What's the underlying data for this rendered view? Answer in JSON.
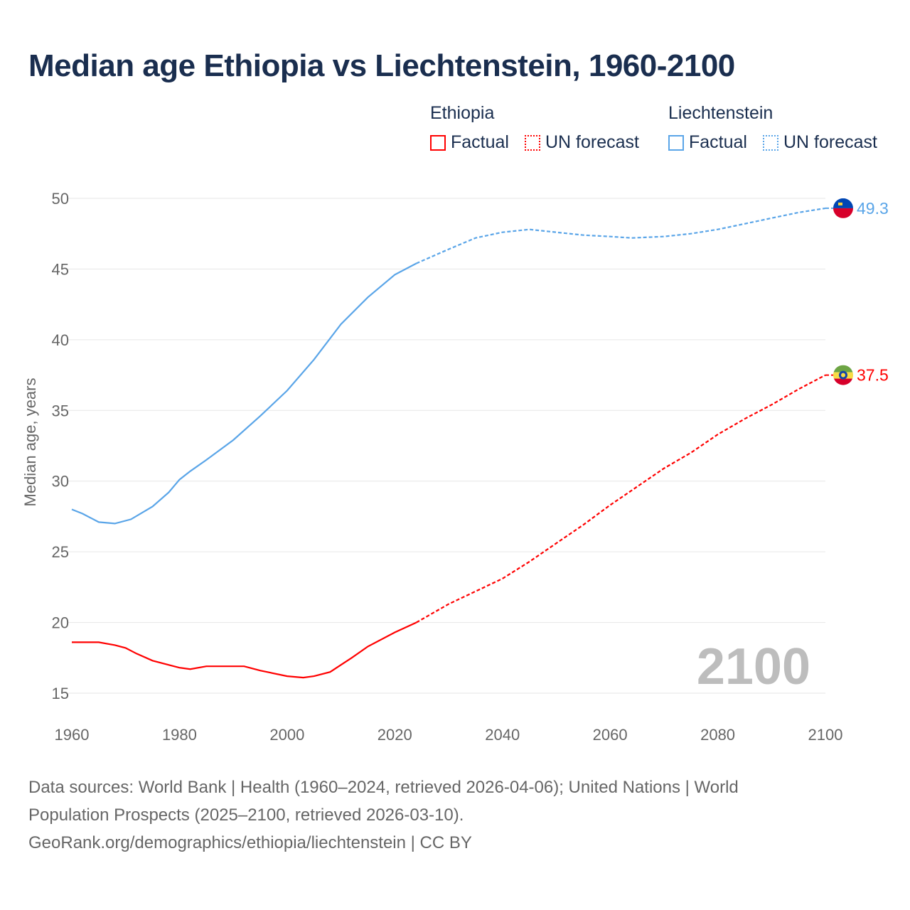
{
  "title": "Median age Ethiopia vs Liechtenstein, 1960-2100",
  "legend": [
    {
      "group": "Ethiopia",
      "factual": "Factual",
      "forecast": "UN forecast",
      "color": "#ff0000"
    },
    {
      "group": "Liechtenstein",
      "factual": "Factual",
      "forecast": "UN forecast",
      "color": "#5aa5e8"
    }
  ],
  "year_label": "2100",
  "footer": {
    "line1": "Data sources: World Bank | Health (1960–2024, retrieved 2026-04-06); United Nations | World",
    "line2": "Population Prospects (2025–2100, retrieved 2026-03-10).",
    "line3": "GeoRank.org/demographics/ethiopia/liechtenstein | CC BY"
  },
  "chart_data": {
    "type": "line",
    "title": "Median age Ethiopia vs Liechtenstein, 1960-2100",
    "xlabel": "",
    "ylabel": "Median age, years",
    "xlim": [
      1960,
      2100
    ],
    "ylim": [
      15,
      50
    ],
    "xticks": [
      1960,
      1980,
      2000,
      2020,
      2040,
      2060,
      2080,
      2100
    ],
    "yticks": [
      15,
      20,
      25,
      30,
      35,
      40,
      45,
      50
    ],
    "forecast_start": 2024,
    "series": [
      {
        "name": "Liechtenstein",
        "color": "#5aa5e8",
        "end_label": "49.3",
        "x": [
          1960,
          1962,
          1965,
          1968,
          1971,
          1975,
          1978,
          1980,
          1982,
          1985,
          1990,
          1995,
          2000,
          2005,
          2010,
          2015,
          2020,
          2024,
          2030,
          2035,
          2040,
          2045,
          2050,
          2055,
          2060,
          2064,
          2070,
          2075,
          2080,
          2085,
          2090,
          2095,
          2100
        ],
        "y": [
          28.0,
          27.7,
          27.1,
          27.0,
          27.3,
          28.2,
          29.2,
          30.1,
          30.7,
          31.5,
          32.9,
          34.6,
          36.4,
          38.6,
          41.1,
          43.0,
          44.6,
          45.4,
          46.4,
          47.2,
          47.6,
          47.8,
          47.6,
          47.4,
          47.3,
          47.2,
          47.3,
          47.5,
          47.8,
          48.2,
          48.6,
          49.0,
          49.3
        ]
      },
      {
        "name": "Ethiopia",
        "color": "#ff0000",
        "end_label": "37.5",
        "x": [
          1960,
          1965,
          1968,
          1970,
          1972,
          1975,
          1980,
          1982,
          1985,
          1992,
          1995,
          2000,
          2003,
          2005,
          2008,
          2010,
          2012,
          2015,
          2020,
          2024,
          2030,
          2035,
          2040,
          2045,
          2050,
          2055,
          2060,
          2065,
          2070,
          2075,
          2080,
          2085,
          2090,
          2095,
          2100
        ],
        "y": [
          18.6,
          18.6,
          18.4,
          18.2,
          17.8,
          17.3,
          16.8,
          16.7,
          16.9,
          16.9,
          16.6,
          16.2,
          16.1,
          16.2,
          16.5,
          17.0,
          17.5,
          18.3,
          19.3,
          20.0,
          21.3,
          22.2,
          23.1,
          24.3,
          25.6,
          26.9,
          28.3,
          29.6,
          30.9,
          32.0,
          33.3,
          34.4,
          35.4,
          36.5,
          37.5
        ]
      }
    ]
  }
}
